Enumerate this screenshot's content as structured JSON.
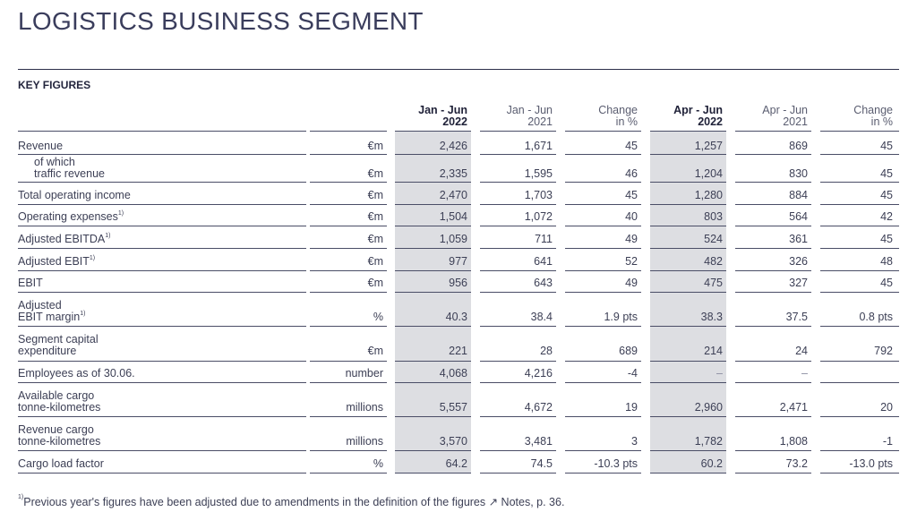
{
  "title": "LOGISTICS BUSINESS SEGMENT",
  "section": "KEY FIGURES",
  "columns": [
    {
      "line1": "Jan - Jun",
      "line2": "2022",
      "bold": true
    },
    {
      "line1": "Jan - Jun",
      "line2": "2021",
      "bold": false
    },
    {
      "line1": "Change",
      "line2": "in %",
      "bold": false
    },
    {
      "line1": "Apr - Jun",
      "line2": "2022",
      "bold": true
    },
    {
      "line1": "Apr - Jun",
      "line2": "2021",
      "bold": false
    },
    {
      "line1": "Change",
      "line2": "in %",
      "bold": false
    }
  ],
  "rows": [
    {
      "label": [
        "Revenue"
      ],
      "sup": "",
      "unit": "€m",
      "values": [
        "2,426",
        "1,671",
        "45",
        "1,257",
        "869",
        "45"
      ]
    },
    {
      "label": [
        "of which",
        "traffic revenue"
      ],
      "indent": true,
      "sup": "",
      "unit": "€m",
      "values": [
        "2,335",
        "1,595",
        "46",
        "1,204",
        "830",
        "45"
      ]
    },
    {
      "label": [
        "Total operating income"
      ],
      "sup": "",
      "unit": "€m",
      "values": [
        "2,470",
        "1,703",
        "45",
        "1,280",
        "884",
        "45"
      ]
    },
    {
      "label": [
        "Operating expenses"
      ],
      "sup": "1)",
      "unit": "€m",
      "values": [
        "1,504",
        "1,072",
        "40",
        "803",
        "564",
        "42"
      ]
    },
    {
      "label": [
        "Adjusted EBITDA"
      ],
      "sup": "1)",
      "unit": "€m",
      "values": [
        "1,059",
        "711",
        "49",
        "524",
        "361",
        "45"
      ]
    },
    {
      "label": [
        "Adjusted EBIT"
      ],
      "sup": "1)",
      "unit": "€m",
      "values": [
        "977",
        "641",
        "52",
        "482",
        "326",
        "48"
      ]
    },
    {
      "label": [
        "EBIT"
      ],
      "sup": "",
      "unit": "€m",
      "values": [
        "956",
        "643",
        "49",
        "475",
        "327",
        "45"
      ]
    },
    {
      "label": [
        "Adjusted",
        "EBIT margin"
      ],
      "sup": "1)",
      "unit": "%",
      "values": [
        "40.3",
        "38.4",
        "1.9 pts",
        "38.3",
        "37.5",
        "0.8 pts"
      ]
    },
    {
      "label": [
        "Segment capital",
        "expenditure"
      ],
      "sup": "",
      "unit": "€m",
      "values": [
        "221",
        "28",
        "689",
        "214",
        "24",
        "792"
      ]
    },
    {
      "label": [
        "Employees as of 30.06."
      ],
      "sup": "",
      "unit": "number",
      "values": [
        "4,068",
        "4,216",
        "-4",
        "–",
        "–",
        ""
      ]
    },
    {
      "label": [
        "Available cargo",
        "tonne-kilometres"
      ],
      "sup": "",
      "unit": "millions",
      "values": [
        "5,557",
        "4,672",
        "19",
        "2,960",
        "2,471",
        "20"
      ]
    },
    {
      "label": [
        "Revenue cargo",
        "tonne-kilometres"
      ],
      "sup": "",
      "unit": "millions",
      "values": [
        "3,570",
        "3,481",
        "3",
        "1,782",
        "1,808",
        "-1"
      ]
    },
    {
      "label": [
        "Cargo load factor"
      ],
      "sup": "",
      "unit": "%",
      "values": [
        "64.2",
        "74.5",
        "-10.3 pts",
        "60.2",
        "73.2",
        "-13.0 pts"
      ]
    }
  ],
  "footnote": {
    "marker": "1)",
    "text": "Previous year's figures have been adjusted due to amendments in the definition of the figures ↗ Notes, p. 36."
  }
}
